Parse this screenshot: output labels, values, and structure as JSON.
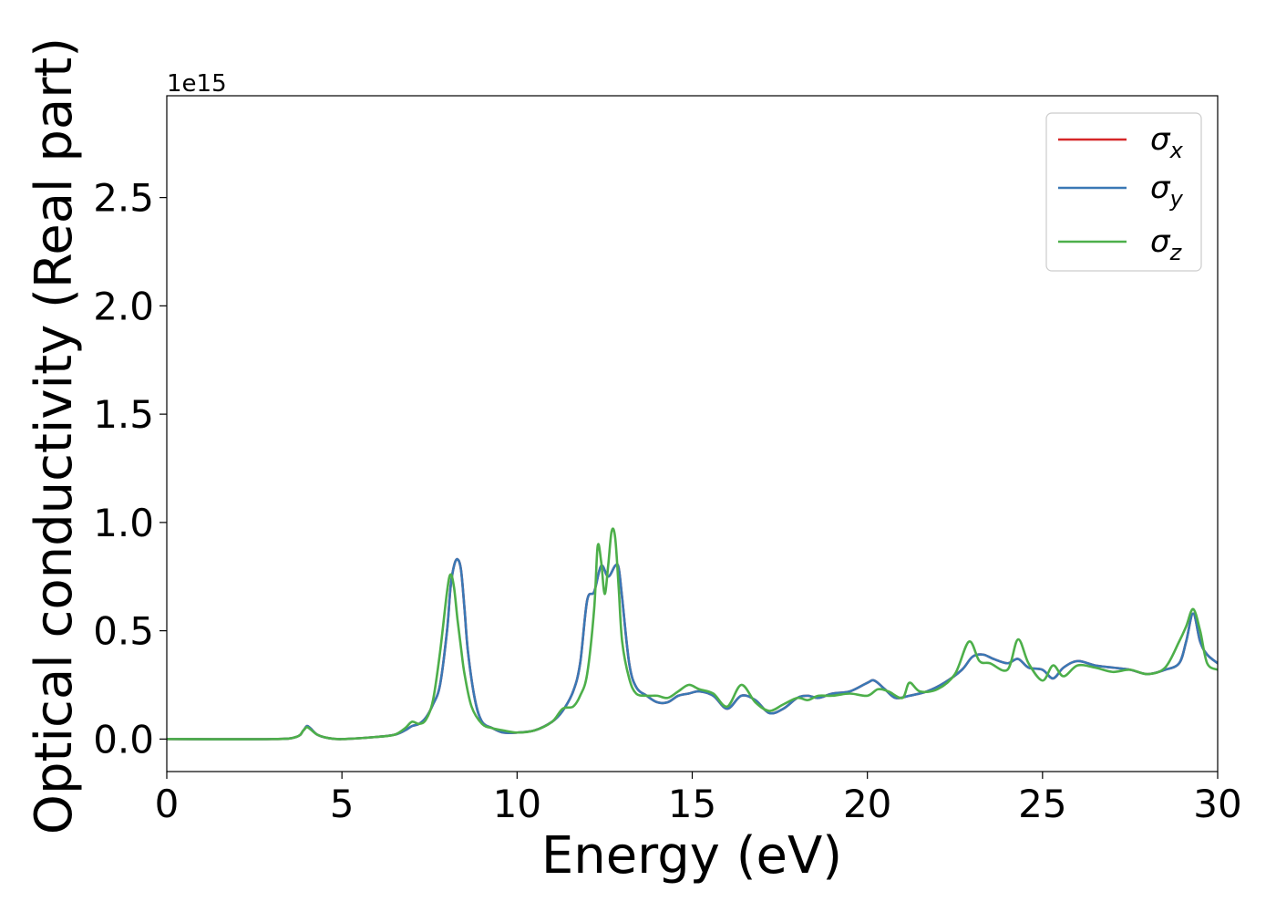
{
  "chart_data": {
    "type": "line",
    "title": "",
    "xlabel": "Energy (eV)",
    "ylabel": "Optical conductivity (Real part)",
    "y_offset_label": "1e15",
    "xlim": [
      0,
      30
    ],
    "ylim": [
      -0.15,
      2.97
    ],
    "x_ticks": [
      0,
      5,
      10,
      15,
      20,
      25,
      30
    ],
    "x_tick_labels": [
      "0",
      "5",
      "10",
      "15",
      "20",
      "25",
      "30"
    ],
    "y_ticks": [
      0.0,
      0.5,
      1.0,
      1.5,
      2.0,
      2.5
    ],
    "y_tick_labels": [
      "0.0",
      "0.5",
      "1.0",
      "1.5",
      "2.0",
      "2.5"
    ],
    "grid": false,
    "legend_position": "top-right",
    "series": [
      {
        "name": "σx",
        "base": "σ",
        "sub": "x",
        "color": "#d62728",
        "x": [
          0,
          3.0,
          3.7,
          3.9,
          4.0,
          4.1,
          4.3,
          4.6,
          5.0,
          6.0,
          6.5,
          6.8,
          7.0,
          7.2,
          7.4,
          7.6,
          7.8,
          8.0,
          8.1,
          8.2,
          8.3,
          8.4,
          8.5,
          8.6,
          8.8,
          9.0,
          9.3,
          9.6,
          10.0,
          10.5,
          11.0,
          11.3,
          11.6,
          11.8,
          12.0,
          12.2,
          12.4,
          12.6,
          12.8,
          12.9,
          13.0,
          13.2,
          13.4,
          13.7,
          14.0,
          14.3,
          14.6,
          14.9,
          15.2,
          15.6,
          16.0,
          16.4,
          16.8,
          17.2,
          17.6,
          18.0,
          18.3,
          18.6,
          19.0,
          19.5,
          20.0,
          20.2,
          20.5,
          20.8,
          21.2,
          21.7,
          22.2,
          22.7,
          23.0,
          23.3,
          23.6,
          24.0,
          24.3,
          24.6,
          25.0,
          25.3,
          25.6,
          26.0,
          26.5,
          27.0,
          27.5,
          28.0,
          28.5,
          28.9,
          29.1,
          29.3,
          29.5,
          29.7,
          30.0
        ],
        "values": [
          0.0,
          0.0,
          0.01,
          0.04,
          0.06,
          0.05,
          0.02,
          0.005,
          0.0,
          0.01,
          0.02,
          0.04,
          0.06,
          0.07,
          0.1,
          0.16,
          0.25,
          0.5,
          0.7,
          0.8,
          0.83,
          0.78,
          0.6,
          0.4,
          0.18,
          0.08,
          0.05,
          0.03,
          0.03,
          0.04,
          0.08,
          0.13,
          0.22,
          0.35,
          0.64,
          0.68,
          0.8,
          0.75,
          0.8,
          0.79,
          0.65,
          0.35,
          0.24,
          0.2,
          0.17,
          0.17,
          0.2,
          0.21,
          0.22,
          0.2,
          0.14,
          0.2,
          0.18,
          0.12,
          0.14,
          0.19,
          0.2,
          0.19,
          0.21,
          0.22,
          0.26,
          0.27,
          0.23,
          0.19,
          0.2,
          0.22,
          0.26,
          0.32,
          0.38,
          0.39,
          0.37,
          0.35,
          0.37,
          0.33,
          0.32,
          0.28,
          0.33,
          0.36,
          0.34,
          0.33,
          0.32,
          0.3,
          0.32,
          0.35,
          0.45,
          0.58,
          0.45,
          0.39,
          0.35
        ]
      },
      {
        "name": "σy",
        "base": "σ",
        "sub": "y",
        "color": "#3a78b5",
        "x": [
          0,
          3.0,
          3.7,
          3.9,
          4.0,
          4.1,
          4.3,
          4.6,
          5.0,
          6.0,
          6.5,
          6.8,
          7.0,
          7.2,
          7.4,
          7.6,
          7.8,
          8.0,
          8.1,
          8.2,
          8.3,
          8.4,
          8.5,
          8.6,
          8.8,
          9.0,
          9.3,
          9.6,
          10.0,
          10.5,
          11.0,
          11.3,
          11.6,
          11.8,
          12.0,
          12.2,
          12.4,
          12.6,
          12.8,
          12.9,
          13.0,
          13.2,
          13.4,
          13.7,
          14.0,
          14.3,
          14.6,
          14.9,
          15.2,
          15.6,
          16.0,
          16.4,
          16.8,
          17.2,
          17.6,
          18.0,
          18.3,
          18.6,
          19.0,
          19.5,
          20.0,
          20.2,
          20.5,
          20.8,
          21.2,
          21.7,
          22.2,
          22.7,
          23.0,
          23.3,
          23.6,
          24.0,
          24.3,
          24.6,
          25.0,
          25.3,
          25.6,
          26.0,
          26.5,
          27.0,
          27.5,
          28.0,
          28.5,
          28.9,
          29.1,
          29.3,
          29.5,
          29.7,
          30.0
        ],
        "values": [
          0.0,
          0.0,
          0.01,
          0.04,
          0.06,
          0.05,
          0.02,
          0.005,
          0.0,
          0.01,
          0.02,
          0.04,
          0.06,
          0.07,
          0.1,
          0.16,
          0.25,
          0.5,
          0.7,
          0.8,
          0.83,
          0.78,
          0.6,
          0.4,
          0.18,
          0.08,
          0.05,
          0.03,
          0.03,
          0.04,
          0.08,
          0.13,
          0.22,
          0.35,
          0.64,
          0.68,
          0.8,
          0.75,
          0.8,
          0.79,
          0.65,
          0.35,
          0.24,
          0.2,
          0.17,
          0.17,
          0.2,
          0.21,
          0.22,
          0.2,
          0.14,
          0.2,
          0.18,
          0.12,
          0.14,
          0.19,
          0.2,
          0.19,
          0.21,
          0.22,
          0.26,
          0.27,
          0.23,
          0.19,
          0.2,
          0.22,
          0.26,
          0.32,
          0.38,
          0.39,
          0.37,
          0.35,
          0.37,
          0.33,
          0.32,
          0.28,
          0.33,
          0.36,
          0.34,
          0.33,
          0.32,
          0.3,
          0.32,
          0.35,
          0.45,
          0.58,
          0.45,
          0.39,
          0.35
        ]
      },
      {
        "name": "σz",
        "base": "σ",
        "sub": "z",
        "color": "#4daf4a",
        "x": [
          0,
          3.0,
          3.7,
          3.9,
          4.0,
          4.1,
          4.3,
          4.6,
          5.0,
          6.0,
          6.5,
          6.8,
          7.0,
          7.2,
          7.4,
          7.6,
          7.8,
          8.0,
          8.1,
          8.2,
          8.3,
          8.4,
          8.5,
          8.7,
          9.0,
          9.3,
          9.6,
          10.0,
          10.5,
          11.0,
          11.3,
          11.6,
          11.8,
          12.0,
          12.2,
          12.3,
          12.4,
          12.5,
          12.6,
          12.7,
          12.8,
          12.9,
          13.0,
          13.2,
          13.4,
          13.7,
          14.0,
          14.3,
          14.6,
          14.9,
          15.2,
          15.6,
          16.0,
          16.4,
          16.8,
          17.2,
          17.6,
          18.0,
          18.3,
          18.6,
          19.0,
          19.5,
          20.0,
          20.3,
          20.6,
          21.0,
          21.2,
          21.5,
          22.0,
          22.5,
          22.9,
          23.2,
          23.5,
          24.0,
          24.3,
          24.6,
          25.0,
          25.3,
          25.6,
          26.0,
          26.5,
          27.0,
          27.5,
          28.0,
          28.5,
          28.9,
          29.1,
          29.3,
          29.5,
          29.7,
          30.0
        ],
        "values": [
          0.0,
          0.0,
          0.01,
          0.04,
          0.055,
          0.045,
          0.02,
          0.005,
          0.0,
          0.01,
          0.02,
          0.05,
          0.08,
          0.07,
          0.09,
          0.18,
          0.4,
          0.68,
          0.76,
          0.7,
          0.55,
          0.42,
          0.3,
          0.15,
          0.07,
          0.05,
          0.04,
          0.03,
          0.04,
          0.08,
          0.14,
          0.15,
          0.2,
          0.3,
          0.6,
          0.89,
          0.82,
          0.67,
          0.8,
          0.96,
          0.93,
          0.7,
          0.45,
          0.28,
          0.21,
          0.2,
          0.2,
          0.19,
          0.22,
          0.25,
          0.23,
          0.21,
          0.15,
          0.25,
          0.17,
          0.13,
          0.16,
          0.19,
          0.18,
          0.2,
          0.2,
          0.21,
          0.2,
          0.23,
          0.22,
          0.19,
          0.26,
          0.22,
          0.23,
          0.3,
          0.45,
          0.36,
          0.35,
          0.32,
          0.46,
          0.35,
          0.27,
          0.34,
          0.29,
          0.34,
          0.33,
          0.31,
          0.32,
          0.3,
          0.33,
          0.45,
          0.52,
          0.6,
          0.5,
          0.35,
          0.32
        ]
      }
    ]
  }
}
